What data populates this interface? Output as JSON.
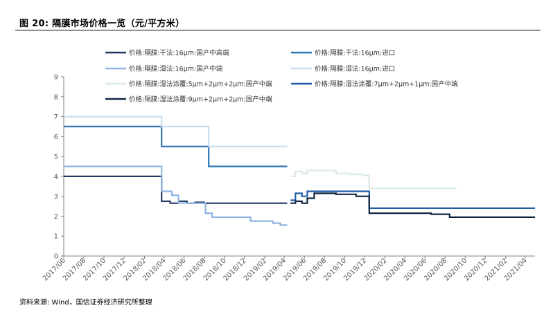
{
  "header": {
    "title": "图 20:  隔膜市场价格一览（元/平方米）"
  },
  "source": "资料来源: Wind，国信证券经济研究所整理",
  "chart_data": {
    "type": "line",
    "title": "",
    "xlabel": "",
    "ylabel": "",
    "ylim": [
      0,
      9
    ],
    "yticks": [
      "0",
      "1",
      "2",
      "3",
      "4",
      "5",
      "6",
      "7",
      "8",
      "9"
    ],
    "x_range": [
      "2017-06",
      "2021-05"
    ],
    "xtick_labels": [
      "2017/06",
      "2017/08",
      "2017/10",
      "2017/12",
      "2018/02",
      "2018/04",
      "2018/06",
      "2018/08",
      "2018/10",
      "2018/12",
      "2019/02",
      "2019/04",
      "2019/06",
      "2019/08",
      "2019/10",
      "2019/12",
      "2020/02",
      "2020/04",
      "2020/06",
      "2020/08",
      "2020/10",
      "2020/12",
      "2021/02",
      "2021/04"
    ],
    "grid": false,
    "legend_position": "top",
    "series": [
      {
        "name": "价格:隔膜:干法:16μm:国产中高端",
        "color": "#1f3864",
        "points": [
          [
            "2017-06-01",
            4.0
          ],
          [
            "2018-03-25",
            4.0
          ],
          [
            "2018-03-25",
            2.75
          ],
          [
            "2018-04-20",
            2.75
          ],
          [
            "2018-04-20",
            2.65
          ],
          [
            "2018-05-15",
            2.65
          ],
          [
            "2018-05-15",
            2.75
          ],
          [
            "2018-06-10",
            2.75
          ],
          [
            "2018-06-10",
            2.65
          ],
          [
            "2018-07-05",
            2.65
          ],
          [
            "2018-07-05",
            2.7
          ],
          [
            "2018-08-01",
            2.7
          ],
          [
            "2018-08-01",
            2.65
          ],
          [
            "2019-04-10",
            2.65
          ]
        ]
      },
      {
        "name": "价格:隔膜:干法:16μm:进口",
        "color": "#2e75b6",
        "points": [
          [
            "2017-06-01",
            6.5
          ],
          [
            "2018-03-25",
            6.5
          ],
          [
            "2018-03-25",
            5.5
          ],
          [
            "2018-08-15",
            5.5
          ],
          [
            "2018-08-15",
            4.5
          ],
          [
            "2019-04-10",
            4.5
          ]
        ]
      },
      {
        "name": "价格:隔膜:湿法:16μm:国产中端",
        "color": "#8eb4e3",
        "points": [
          [
            "2017-06-01",
            4.5
          ],
          [
            "2018-03-25",
            4.5
          ],
          [
            "2018-03-25",
            3.25
          ],
          [
            "2018-04-25",
            3.25
          ],
          [
            "2018-04-25",
            3.05
          ],
          [
            "2018-05-15",
            3.05
          ],
          [
            "2018-05-15",
            2.65
          ],
          [
            "2018-08-05",
            2.65
          ],
          [
            "2018-08-05",
            2.15
          ],
          [
            "2018-08-25",
            2.15
          ],
          [
            "2018-08-25",
            1.95
          ],
          [
            "2018-12-20",
            1.95
          ],
          [
            "2018-12-20",
            1.75
          ],
          [
            "2019-02-25",
            1.75
          ],
          [
            "2019-02-25",
            1.65
          ],
          [
            "2019-03-20",
            1.65
          ],
          [
            "2019-03-20",
            1.55
          ],
          [
            "2019-04-10",
            1.55
          ]
        ]
      },
      {
        "name": "价格:隔膜:湿法:16μm:进口",
        "color": "#c9dcf0",
        "points": [
          [
            "2017-06-01",
            7.0
          ],
          [
            "2018-03-25",
            7.0
          ],
          [
            "2018-03-25",
            6.5
          ],
          [
            "2018-08-15",
            6.5
          ],
          [
            "2018-08-15",
            5.5
          ],
          [
            "2019-04-10",
            5.5
          ]
        ]
      },
      {
        "name": "价格:隔膜:湿法涂覆:5μm+2μm+2μm:国产中端",
        "color": "#dbe9e8",
        "points": [
          [
            "2019-04-20",
            4.0
          ],
          [
            "2019-05-05",
            4.0
          ],
          [
            "2019-05-05",
            4.25
          ],
          [
            "2019-05-25",
            4.25
          ],
          [
            "2019-05-25",
            4.15
          ],
          [
            "2019-06-10",
            4.15
          ],
          [
            "2019-06-10",
            4.3
          ],
          [
            "2019-09-05",
            4.3
          ],
          [
            "2019-09-05",
            4.15
          ],
          [
            "2019-10-15",
            4.15
          ],
          [
            "2019-10-15",
            4.1
          ],
          [
            "2019-11-25",
            4.1
          ],
          [
            "2019-11-25",
            4.05
          ],
          [
            "2019-12-15",
            4.05
          ],
          [
            "2019-12-15",
            3.4
          ],
          [
            "2020-09-05",
            3.4
          ]
        ]
      },
      {
        "name": "价格:隔膜:湿法涂覆:7μm+2μm+1μm:国产中端",
        "color": "#1f5fa8",
        "points": [
          [
            "2019-04-20",
            2.8
          ],
          [
            "2019-05-05",
            2.8
          ],
          [
            "2019-05-05",
            3.15
          ],
          [
            "2019-05-25",
            3.15
          ],
          [
            "2019-05-25",
            3.0
          ],
          [
            "2019-06-10",
            3.0
          ],
          [
            "2019-06-10",
            3.25
          ],
          [
            "2019-12-15",
            3.25
          ],
          [
            "2019-12-15",
            2.4
          ],
          [
            "2021-05-01",
            2.4
          ]
        ]
      },
      {
        "name": "价格:隔膜:湿法涂覆:9μm+2μm+2μm:国产中端",
        "color": "#0f2640",
        "points": [
          [
            "2019-04-20",
            2.65
          ],
          [
            "2019-05-05",
            2.65
          ],
          [
            "2019-05-05",
            2.75
          ],
          [
            "2019-05-25",
            2.75
          ],
          [
            "2019-05-25",
            2.65
          ],
          [
            "2019-06-10",
            2.65
          ],
          [
            "2019-06-10",
            2.9
          ],
          [
            "2019-07-01",
            2.9
          ],
          [
            "2019-07-01",
            3.15
          ],
          [
            "2019-09-05",
            3.15
          ],
          [
            "2019-09-05",
            3.1
          ],
          [
            "2019-11-05",
            3.1
          ],
          [
            "2019-11-05",
            3.0
          ],
          [
            "2019-12-15",
            3.0
          ],
          [
            "2019-12-15",
            2.15
          ],
          [
            "2020-06-20",
            2.15
          ],
          [
            "2020-06-20",
            2.1
          ],
          [
            "2020-08-15",
            2.1
          ],
          [
            "2020-08-15",
            1.95
          ],
          [
            "2021-05-01",
            1.95
          ]
        ]
      }
    ]
  }
}
